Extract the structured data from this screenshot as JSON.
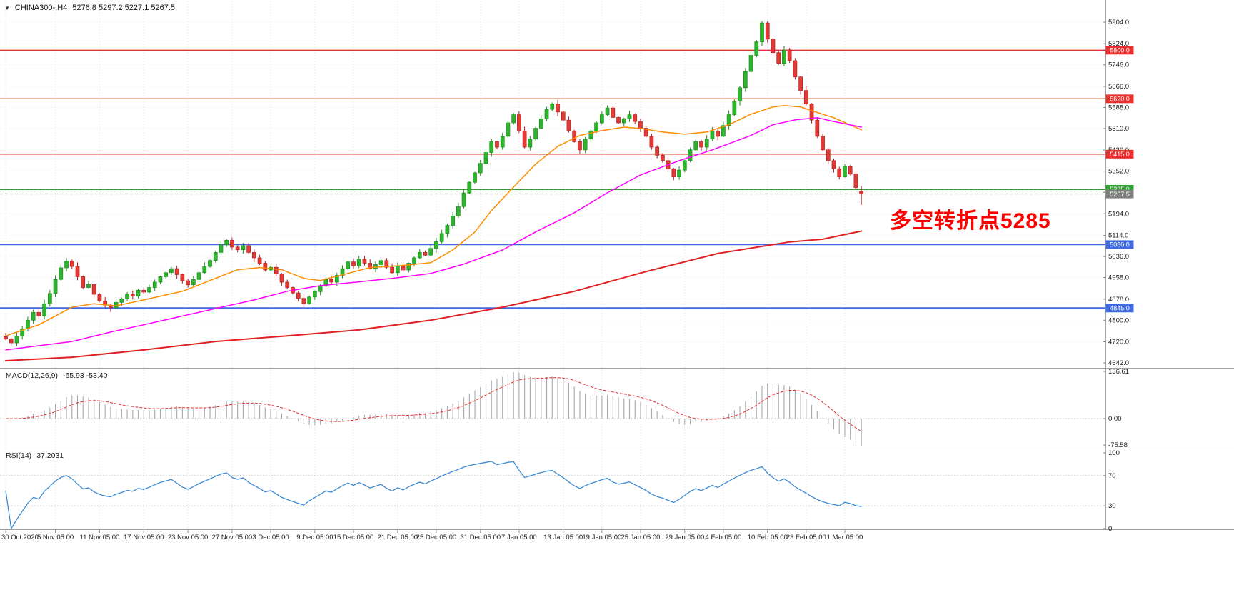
{
  "header": {
    "marker": "▼",
    "symbol": "CHINA300-,H4",
    "ohlc": "5276.8 5297.2 5227.1 5267.5"
  },
  "chart_data": {
    "type": "candlestick",
    "title": "CHINA300- H4 chart with MACD and RSI",
    "y_axis": {
      "max": 5904.0,
      "min": 4642.0,
      "ticks": [
        "5904.0",
        "5824.0",
        "5746.0",
        "5666.0",
        "5588.0",
        "5510.0",
        "5430.0",
        "5352.0",
        "5274.0",
        "5194.0",
        "5114.0",
        "5036.0",
        "4958.0",
        "4878.0",
        "4800.0",
        "4720.0",
        "4642.0"
      ]
    },
    "x_labels": [
      {
        "i": 0,
        "t": "30 Oct 2020"
      },
      {
        "i": 9,
        "t": "5 Nov 05:00"
      },
      {
        "i": 17,
        "t": "11 Nov 05:00"
      },
      {
        "i": 25,
        "t": "17 Nov 05:00"
      },
      {
        "i": 33,
        "t": "23 Nov 05:00"
      },
      {
        "i": 41,
        "t": "27 Nov 05:00"
      },
      {
        "i": 48,
        "t": "3 Dec 05:00"
      },
      {
        "i": 56,
        "t": "9 Dec 05:00"
      },
      {
        "i": 63,
        "t": "15 Dec 05:00"
      },
      {
        "i": 71,
        "t": "21 Dec 05:00"
      },
      {
        "i": 78,
        "t": "25 Dec 05:00"
      },
      {
        "i": 86,
        "t": "31 Dec 05:00"
      },
      {
        "i": 93,
        "t": "7 Jan 05:00"
      },
      {
        "i": 101,
        "t": "13 Jan 05:00"
      },
      {
        "i": 108,
        "t": "19 Jan 05:00"
      },
      {
        "i": 115,
        "t": "25 Jan 05:00"
      },
      {
        "i": 123,
        "t": "29 Jan 05:00"
      },
      {
        "i": 130,
        "t": "4 Feb 05:00"
      },
      {
        "i": 138,
        "t": "10 Feb 05:00"
      },
      {
        "i": 145,
        "t": "23 Feb 05:00"
      },
      {
        "i": 152,
        "t": "1 Mar 05:00"
      }
    ],
    "hlines": [
      {
        "value": 5800.0,
        "label": "5800.0",
        "color": "#e8312e",
        "width": 1.4
      },
      {
        "value": 5620.0,
        "label": "5620.0",
        "color": "#e8312e",
        "width": 1.4
      },
      {
        "value": 5415.0,
        "label": "5415.0",
        "color": "#e8312e",
        "width": 1.4
      },
      {
        "value": 5285.0,
        "label": "5285.0",
        "color": "#2ca02c",
        "width": 2
      },
      {
        "value": 5080.0,
        "label": "5080.0",
        "color": "#4169e1",
        "width": 1.6
      },
      {
        "value": 4845.0,
        "label": "4845.0",
        "color": "#4169e1",
        "width": 2
      }
    ],
    "current_price": {
      "value": 5267.5,
      "label": "5267.5",
      "color": "#808080"
    },
    "annotation": {
      "text": "多空转折点5285",
      "color": "#ff0000"
    },
    "candles": {
      "closes": [
        4730,
        4716,
        4741,
        4768,
        4800,
        4829,
        4816,
        4861,
        4899,
        4951,
        4994,
        5019,
        4999,
        4961,
        4921,
        4932,
        4896,
        4871,
        4856,
        4846,
        4866,
        4879,
        4896,
        4889,
        4911,
        4904,
        4921,
        4941,
        4961,
        4976,
        4991,
        4969,
        4946,
        4931,
        4951,
        4976,
        4999,
        5021,
        5051,
        5079,
        5096,
        5071,
        5061,
        5076,
        5051,
        5031,
        5011,
        4986,
        4996,
        4971,
        4941,
        4921,
        4901,
        4881,
        4861,
        4886,
        4906,
        4926,
        4951,
        4941,
        4966,
        4991,
        5016,
        5001,
        5026,
        5011,
        4991,
        5006,
        5021,
        4996,
        4976,
        5001,
        4986,
        5011,
        5031,
        5051,
        5041,
        5066,
        5091,
        5121,
        5151,
        5186,
        5221,
        5271,
        5311,
        5346,
        5381,
        5421,
        5461,
        5441,
        5481,
        5531,
        5561,
        5501,
        5441,
        5471,
        5511,
        5546,
        5581,
        5601,
        5571,
        5541,
        5501,
        5461,
        5431,
        5471,
        5501,
        5531,
        5561,
        5586,
        5551,
        5531,
        5546,
        5561,
        5536,
        5511,
        5481,
        5441,
        5411,
        5391,
        5361,
        5331,
        5356,
        5391,
        5431,
        5461,
        5441,
        5471,
        5501,
        5481,
        5521,
        5561,
        5611,
        5661,
        5721,
        5781,
        5831,
        5901,
        5841,
        5791,
        5751,
        5801,
        5761,
        5701,
        5651,
        5601,
        5541,
        5481,
        5431,
        5391,
        5361,
        5331,
        5371,
        5341,
        5291,
        5267.5
      ],
      "last": {
        "open": 5276.8,
        "high": 5297.2,
        "low": 5227.1,
        "close": 5267.5
      },
      "up_color": "#2db52d",
      "up_border": "#1d8c1d",
      "down_color": "#e53935",
      "down_border": "#b02020"
    },
    "moving_averages": [
      {
        "name": "ma-fast",
        "color": "#ff8c00",
        "points": [
          [
            0,
            4742
          ],
          [
            6,
            4783
          ],
          [
            12,
            4848
          ],
          [
            16,
            4861
          ],
          [
            20,
            4853
          ],
          [
            25,
            4875
          ],
          [
            32,
            4907
          ],
          [
            38,
            4955
          ],
          [
            42,
            4987
          ],
          [
            46,
            4995
          ],
          [
            50,
            4987
          ],
          [
            54,
            4955
          ],
          [
            57,
            4947
          ],
          [
            61,
            4968
          ],
          [
            66,
            4995
          ],
          [
            72,
            5003
          ],
          [
            77,
            5013
          ],
          [
            81,
            5060
          ],
          [
            85,
            5127
          ],
          [
            88,
            5206
          ],
          [
            92,
            5293
          ],
          [
            96,
            5378
          ],
          [
            100,
            5444
          ],
          [
            104,
            5484
          ],
          [
            108,
            5502
          ],
          [
            112,
            5515
          ],
          [
            115,
            5510
          ],
          [
            119,
            5497
          ],
          [
            123,
            5489
          ],
          [
            127,
            5497
          ],
          [
            131,
            5524
          ],
          [
            135,
            5563
          ],
          [
            139,
            5590
          ],
          [
            141,
            5595
          ],
          [
            144,
            5590
          ],
          [
            146,
            5576
          ],
          [
            150,
            5550
          ],
          [
            155,
            5505
          ]
        ]
      },
      {
        "name": "ma-mid",
        "color": "#ff00ff",
        "points": [
          [
            0,
            4690
          ],
          [
            12,
            4721
          ],
          [
            19,
            4756
          ],
          [
            25,
            4783
          ],
          [
            38,
            4843
          ],
          [
            45,
            4875
          ],
          [
            51,
            4907
          ],
          [
            57,
            4928
          ],
          [
            64,
            4942
          ],
          [
            70,
            4955
          ],
          [
            77,
            4973
          ],
          [
            83,
            5008
          ],
          [
            90,
            5060
          ],
          [
            96,
            5127
          ],
          [
            103,
            5198
          ],
          [
            109,
            5272
          ],
          [
            115,
            5338
          ],
          [
            122,
            5391
          ],
          [
            128,
            5431
          ],
          [
            135,
            5484
          ],
          [
            139,
            5524
          ],
          [
            143,
            5542
          ],
          [
            147,
            5550
          ],
          [
            150,
            5536
          ],
          [
            155,
            5515
          ]
        ]
      },
      {
        "name": "ma-slow",
        "color": "#e02020",
        "points": [
          [
            0,
            4650
          ],
          [
            12,
            4663
          ],
          [
            25,
            4690
          ],
          [
            38,
            4721
          ],
          [
            51,
            4742
          ],
          [
            64,
            4764
          ],
          [
            77,
            4800
          ],
          [
            90,
            4848
          ],
          [
            103,
            4907
          ],
          [
            116,
            4980
          ],
          [
            129,
            5047
          ],
          [
            142,
            5090
          ],
          [
            148,
            5100
          ],
          [
            155,
            5130
          ]
        ]
      }
    ],
    "macd": {
      "label": "MACD(12,26,9)",
      "values_text": "-65.93 -53.40",
      "params": [
        12,
        26,
        9
      ],
      "y_ticks": [
        "136.61",
        "0.00",
        "-75.58"
      ],
      "hist_color": "#a8a8a8",
      "signal_color": "#e03131"
    },
    "rsi": {
      "label": "RSI(14)",
      "value_text": "37.2031",
      "period": 14,
      "y_ticks": [
        "100",
        "70",
        "30",
        "0"
      ],
      "levels": [
        70,
        30
      ],
      "line_color": "#3d8bd4"
    }
  }
}
